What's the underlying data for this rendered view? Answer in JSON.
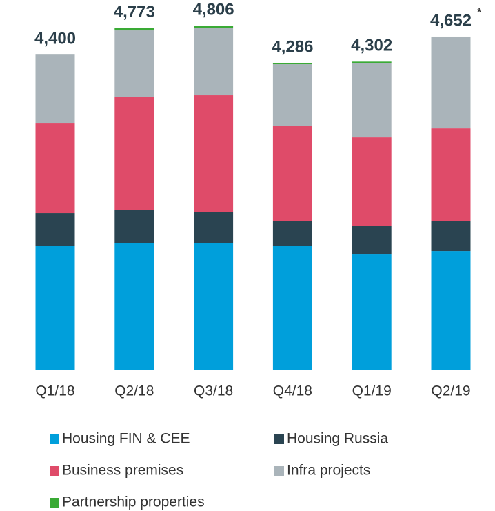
{
  "chart_data": {
    "type": "stacked_bar",
    "categories": [
      "Q1/18",
      "Q2/18",
      "Q3/18",
      "Q4/18",
      "Q1/19",
      "Q2/19"
    ],
    "series": [
      {
        "name": "Housing FIN & CEE",
        "color": "#009fdb",
        "values": [
          1724,
          1772,
          1772,
          1733,
          1608,
          1656
        ]
      },
      {
        "name": "Housing Russia",
        "color": "#2a4451",
        "values": [
          462,
          453,
          424,
          347,
          404,
          424
        ]
      },
      {
        "name": "Business premises",
        "color": "#df4b69",
        "values": [
          1252,
          1589,
          1637,
          1329,
          1233,
          1290
        ]
      },
      {
        "name": "Infra projects",
        "color": "#aab4ba",
        "values": [
          962,
          924,
          944,
          857,
          1040,
          1281
        ]
      },
      {
        "name": "Partnership properties",
        "color": "#3aaa35",
        "values": [
          0,
          35,
          29,
          20,
          17,
          1
        ]
      }
    ],
    "totals": [
      4400,
      4773,
      4806,
      4286,
      4302,
      4652
    ],
    "total_labels": [
      "4,400",
      "4,773",
      "4,806",
      "4,286",
      "4,302",
      "4,652"
    ],
    "annotation": "*"
  }
}
